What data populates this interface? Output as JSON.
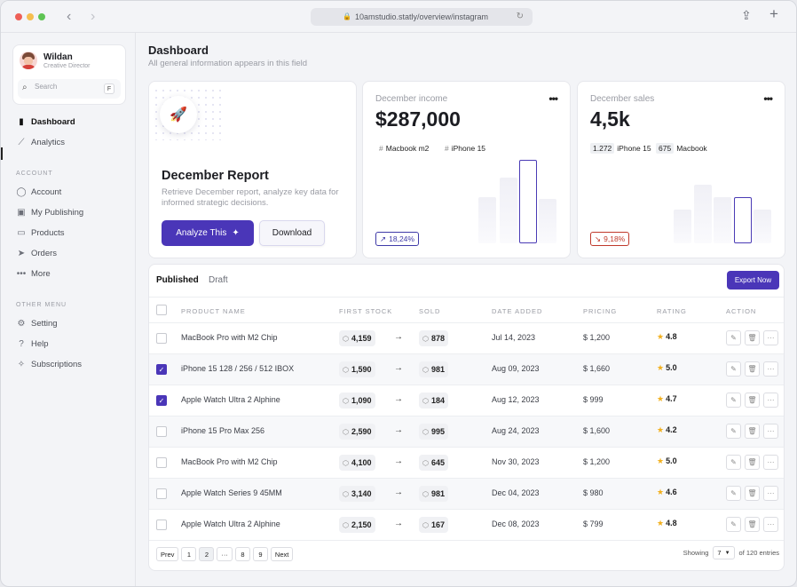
{
  "browser": {
    "url": "10amstudio.statly/overview/instagram"
  },
  "profile": {
    "name": "Wildan",
    "role": "Creative Director",
    "search_placeholder": "Search",
    "search_shortcut": "F"
  },
  "sidebar": {
    "main_items": [
      {
        "label": "Dashboard",
        "icon": "bar-chart-icon"
      },
      {
        "label": "Analytics",
        "icon": "trend-line-icon"
      }
    ],
    "account_label": "ACCOUNT",
    "account_items": [
      {
        "label": "Account",
        "icon": "user-icon"
      },
      {
        "label": "My Publishing",
        "icon": "image-icon"
      },
      {
        "label": "Products",
        "icon": "folder-icon"
      },
      {
        "label": "Orders",
        "icon": "cursor-icon"
      },
      {
        "label": "More",
        "icon": "ellipsis-icon"
      }
    ],
    "other_label": "OTHER MENU",
    "other_items": [
      {
        "label": "Setting",
        "icon": "gear-icon"
      },
      {
        "label": "Help",
        "icon": "help-icon"
      },
      {
        "label": "Subscriptions",
        "icon": "sparkle-icon"
      }
    ]
  },
  "header": {
    "title": "Dashboard",
    "subtitle": "All general information appears in this field"
  },
  "report_card": {
    "title": "December Report",
    "description": "Retrieve December report, analyze key data for informed strategic decisions.",
    "primary_label": "Analyze This",
    "secondary_label": "Download"
  },
  "income_card": {
    "label": "December income",
    "value": "$287,000",
    "tags": [
      {
        "prefix": "#",
        "label": "Macbook m2"
      },
      {
        "prefix": "#",
        "label": "iPhone 15"
      }
    ],
    "change": "18,24%",
    "change_color": "#3f3aa8"
  },
  "sales_card": {
    "label": "December sales",
    "value": "4,5k",
    "tags": [
      {
        "num": "1.272",
        "label": "iPhone 15"
      },
      {
        "num": "675",
        "label": "Macbook"
      }
    ],
    "change": "9,18%",
    "change_color": "#c0392b"
  },
  "table": {
    "tabs": [
      "Published",
      "Draft"
    ],
    "export_label": "Export Now",
    "columns": [
      "PRODUCT NAME",
      "FIRST STOCK",
      "SOLD",
      "DATE ADDED",
      "PRICING",
      "RATING",
      "ACTION"
    ],
    "rows": [
      {
        "checked": false,
        "name": "MacBook Pro with M2 Chip",
        "stock": "4,159",
        "sold": "878",
        "date": "Jul 14, 2023",
        "price": "$ 1,200",
        "rating": "4.8"
      },
      {
        "checked": true,
        "name": "iPhone 15 128 / 256 / 512 IBOX",
        "stock": "1,590",
        "sold": "981",
        "date": "Aug 09, 2023",
        "price": "$ 1,660",
        "rating": "5.0"
      },
      {
        "checked": true,
        "name": "Apple Watch Ultra 2 Alphine",
        "stock": "1,090",
        "sold": "184",
        "date": "Aug 12, 2023",
        "price": "$ 999",
        "rating": "4.7"
      },
      {
        "checked": false,
        "name": "iPhone 15 Pro Max 256",
        "stock": "2,590",
        "sold": "995",
        "date": "Aug 24, 2023",
        "price": "$ 1,600",
        "rating": "4.2"
      },
      {
        "checked": false,
        "name": "MacBook Pro with M2 Chip",
        "stock": "4,100",
        "sold": "645",
        "date": "Nov 30, 2023",
        "price": "$ 1,200",
        "rating": "5.0"
      },
      {
        "checked": false,
        "name": "Apple Watch Series 9 45MM",
        "stock": "3,140",
        "sold": "981",
        "date": "Dec 04, 2023",
        "price": "$ 980",
        "rating": "4.6"
      },
      {
        "checked": false,
        "name": "Apple Watch Ultra 2 Alphine",
        "stock": "2,150",
        "sold": "167",
        "date": "Dec 08, 2023",
        "price": "$ 799",
        "rating": "4.8"
      }
    ],
    "pagination": [
      "Prev",
      "1",
      "2",
      "···",
      "8",
      "9",
      "Next"
    ],
    "current_page": "2",
    "showing_label": "Showing",
    "per_page": "7",
    "total_label": "of 120 entries"
  }
}
